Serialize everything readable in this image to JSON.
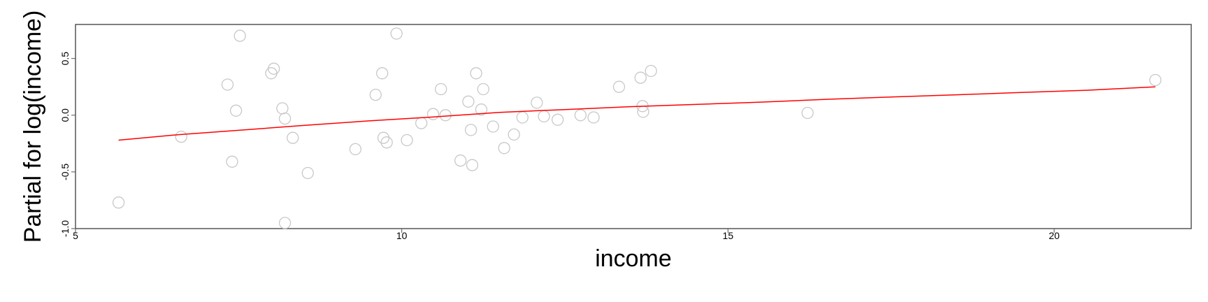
{
  "chart_data": {
    "type": "scatter",
    "xlabel": "income",
    "ylabel": "Partial for log(income)",
    "xlim": [
      5,
      22.1
    ],
    "ylim": [
      -1.0,
      0.8
    ],
    "x_ticks": [
      5,
      10,
      15,
      20
    ],
    "x_tick_labels": [
      "5",
      "10",
      "15",
      "20"
    ],
    "y_ticks": [
      -1.0,
      -0.5,
      0.0,
      0.5
    ],
    "y_tick_labels": [
      "-1.0",
      "-0.5",
      "0.0",
      "0.5"
    ],
    "grid": false,
    "legend": "none",
    "colors": {
      "points": "#c8c8c8",
      "fit_line": "#ff0000",
      "frame": "#555555"
    },
    "points": [
      {
        "x": 5.66,
        "y": -0.77
      },
      {
        "x": 6.62,
        "y": -0.19
      },
      {
        "x": 7.33,
        "y": 0.27
      },
      {
        "x": 7.4,
        "y": -0.41
      },
      {
        "x": 7.46,
        "y": 0.04
      },
      {
        "x": 7.52,
        "y": 0.7
      },
      {
        "x": 8.0,
        "y": 0.37
      },
      {
        "x": 8.04,
        "y": 0.41
      },
      {
        "x": 8.17,
        "y": 0.06
      },
      {
        "x": 8.21,
        "y": -0.03
      },
      {
        "x": 8.21,
        "y": -0.95
      },
      {
        "x": 8.33,
        "y": -0.2
      },
      {
        "x": 8.56,
        "y": -0.51
      },
      {
        "x": 9.29,
        "y": -0.3
      },
      {
        "x": 9.6,
        "y": 0.18
      },
      {
        "x": 9.7,
        "y": 0.37
      },
      {
        "x": 9.72,
        "y": -0.2
      },
      {
        "x": 9.77,
        "y": -0.24
      },
      {
        "x": 9.92,
        "y": 0.72
      },
      {
        "x": 10.08,
        "y": -0.22
      },
      {
        "x": 10.3,
        "y": -0.07
      },
      {
        "x": 10.48,
        "y": 0.01
      },
      {
        "x": 10.6,
        "y": 0.23
      },
      {
        "x": 10.67,
        "y": 0.0
      },
      {
        "x": 10.9,
        "y": -0.4
      },
      {
        "x": 11.02,
        "y": 0.12
      },
      {
        "x": 11.06,
        "y": -0.13
      },
      {
        "x": 11.08,
        "y": -0.44
      },
      {
        "x": 11.14,
        "y": 0.37
      },
      {
        "x": 11.22,
        "y": 0.05
      },
      {
        "x": 11.25,
        "y": 0.23
      },
      {
        "x": 11.4,
        "y": -0.1
      },
      {
        "x": 11.57,
        "y": -0.29
      },
      {
        "x": 11.72,
        "y": -0.17
      },
      {
        "x": 11.85,
        "y": -0.02
      },
      {
        "x": 12.07,
        "y": 0.11
      },
      {
        "x": 12.18,
        "y": -0.01
      },
      {
        "x": 12.39,
        "y": -0.04
      },
      {
        "x": 12.74,
        "y": 0.0
      },
      {
        "x": 12.94,
        "y": -0.02
      },
      {
        "x": 13.33,
        "y": 0.25
      },
      {
        "x": 13.66,
        "y": 0.33
      },
      {
        "x": 13.69,
        "y": 0.08
      },
      {
        "x": 13.7,
        "y": 0.03
      },
      {
        "x": 13.82,
        "y": 0.39
      },
      {
        "x": 16.22,
        "y": 0.02
      },
      {
        "x": 21.55,
        "y": 0.31
      }
    ],
    "fit_line": {
      "x": [
        5.66,
        6.5,
        7.5,
        8.5,
        9.5,
        10.5,
        11.5,
        12.5,
        13.5,
        14.5,
        15.5,
        16.5,
        17.5,
        18.5,
        19.5,
        20.5,
        21.55
      ],
      "y": [
        -0.22,
        -0.175,
        -0.133,
        -0.09,
        -0.05,
        -0.015,
        0.025,
        0.05,
        0.075,
        0.095,
        0.115,
        0.14,
        0.16,
        0.18,
        0.2,
        0.22,
        0.25
      ]
    }
  }
}
